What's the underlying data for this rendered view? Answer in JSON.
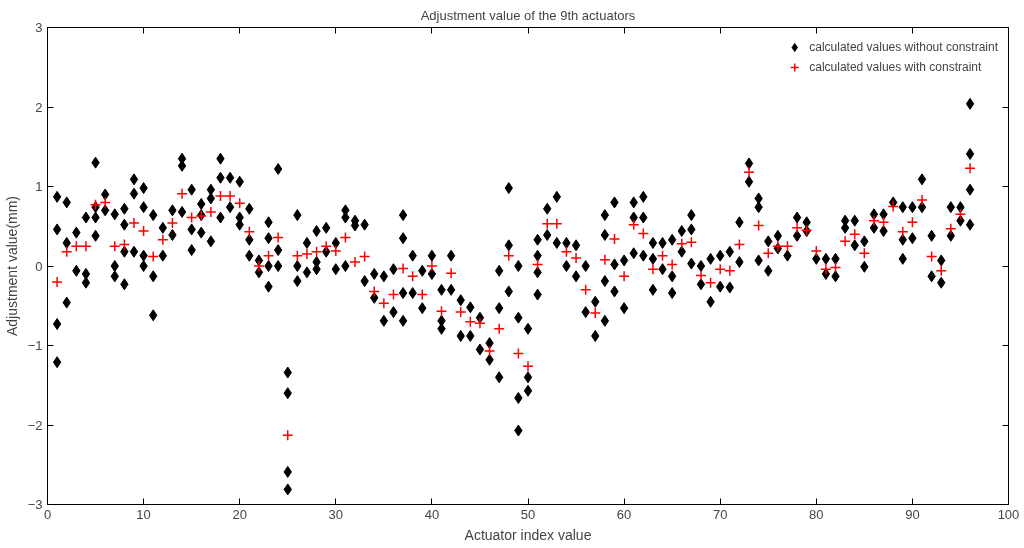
{
  "chart_data": {
    "type": "scatter",
    "title": "Adjustment value of the 9th actuators",
    "xlabel": "Actuator index value",
    "ylabel": "Adjustment value(mm)",
    "xlim": [
      0,
      100
    ],
    "xticks": [
      0,
      10,
      20,
      30,
      40,
      50,
      60,
      70,
      80,
      90,
      100
    ],
    "ylim": [
      -3,
      3
    ],
    "yticks": [
      -3,
      -2,
      -1,
      0,
      1,
      2,
      3
    ],
    "grid": false,
    "legend": "top right",
    "series": [
      {
        "name": "calculated values without constraint",
        "color": "#000000",
        "marker": "diamond",
        "x": [
          1,
          1,
          1,
          1,
          2,
          2,
          2,
          3,
          3,
          4,
          4,
          4,
          5,
          5,
          5,
          5,
          6,
          6,
          7,
          7,
          7,
          8,
          8,
          8,
          8,
          9,
          9,
          9,
          10,
          10,
          10,
          10,
          11,
          11,
          11,
          12,
          12,
          13,
          13,
          14,
          14,
          14,
          15,
          15,
          15,
          16,
          16,
          16,
          17,
          17,
          17,
          18,
          18,
          18,
          19,
          19,
          20,
          20,
          20,
          21,
          21,
          21,
          22,
          22,
          23,
          23,
          23,
          23,
          24,
          24,
          24,
          25,
          25,
          25,
          25,
          26,
          26,
          26,
          27,
          27,
          28,
          28,
          28,
          29,
          29,
          30,
          30,
          31,
          31,
          31,
          32,
          32,
          33,
          33,
          34,
          34,
          35,
          35,
          36,
          36,
          37,
          37,
          37,
          37,
          38,
          38,
          39,
          39,
          40,
          40,
          41,
          41,
          41,
          42,
          42,
          43,
          43,
          44,
          44,
          45,
          45,
          46,
          46,
          47,
          47,
          47,
          48,
          48,
          48,
          49,
          49,
          49,
          49,
          50,
          50,
          50,
          51,
          51,
          51,
          51,
          52,
          52,
          53,
          53,
          54,
          54,
          55,
          55,
          56,
          56,
          57,
          57,
          58,
          58,
          58,
          58,
          59,
          59,
          59,
          60,
          60,
          61,
          61,
          61,
          62,
          62,
          62,
          63,
          63,
          63,
          64,
          64,
          65,
          65,
          65,
          66,
          66,
          67,
          67,
          67,
          68,
          68,
          69,
          69,
          70,
          70,
          71,
          71,
          72,
          72,
          73,
          73,
          74,
          74,
          74,
          75,
          75,
          76,
          76,
          77,
          78,
          78,
          79,
          79,
          80,
          81,
          81,
          82,
          82,
          83,
          83,
          84,
          84,
          85,
          85,
          86,
          86,
          87,
          87,
          88,
          89,
          89,
          89,
          90,
          90,
          91,
          91,
          92,
          92,
          93,
          93,
          94,
          94,
          95,
          95,
          96,
          96,
          96,
          96
        ],
        "values": [
          0.87,
          0.46,
          -0.73,
          -1.21,
          0.8,
          0.29,
          -0.46,
          0.42,
          -0.06,
          0.61,
          -0.1,
          -0.21,
          1.3,
          0.61,
          0.38,
          0.74,
          0.9,
          0.7,
          0.65,
          0.0,
          -0.13,
          0.72,
          0.52,
          0.18,
          -0.23,
          1.09,
          0.91,
          0.18,
          0.98,
          0.74,
          0.13,
          0.0,
          0.64,
          -0.13,
          -0.62,
          0.48,
          0.13,
          0.7,
          0.39,
          1.35,
          1.26,
          0.68,
          0.96,
          0.2,
          0.46,
          0.78,
          0.42,
          0.64,
          0.96,
          0.31,
          0.85,
          1.35,
          1.11,
          0.61,
          1.11,
          0.74,
          1.06,
          0.61,
          0.52,
          0.72,
          0.13,
          0.33,
          0.07,
          -0.08,
          0.55,
          0.35,
          0.0,
          -0.26,
          1.22,
          0.2,
          0.0,
          -1.34,
          -1.6,
          -2.59,
          -2.81,
          0.64,
          0.0,
          -0.19,
          0.29,
          -0.08,
          0.44,
          0.05,
          -0.04,
          0.48,
          0.18,
          0.29,
          -0.04,
          0.7,
          0.61,
          0.0,
          0.57,
          0.51,
          0.52,
          -0.19,
          -0.1,
          -0.4,
          -0.13,
          -0.69,
          -0.04,
          -0.58,
          0.64,
          0.35,
          -0.34,
          -0.69,
          0.13,
          -0.34,
          -0.06,
          -0.53,
          0.13,
          -0.1,
          -0.3,
          -0.69,
          -0.79,
          0.13,
          -0.3,
          -0.43,
          -0.88,
          -0.52,
          -0.88,
          -0.65,
          -1.05,
          -0.97,
          -1.18,
          -0.06,
          -0.53,
          -1.4,
          0.98,
          0.26,
          -0.32,
          0.0,
          -0.65,
          -1.66,
          -2.07,
          -0.79,
          -1.4,
          -1.57,
          0.33,
          0.13,
          -0.08,
          -0.36,
          0.72,
          0.39,
          0.87,
          0.29,
          0.29,
          0.0,
          0.26,
          -0.13,
          0.0,
          -0.58,
          -0.45,
          -0.88,
          0.64,
          0.39,
          -0.19,
          -0.69,
          0.8,
          0.02,
          -0.32,
          0.07,
          -0.53,
          0.8,
          0.61,
          0.16,
          0.87,
          0.61,
          0.13,
          0.29,
          0.09,
          -0.3,
          0.29,
          -0.04,
          0.33,
          -0.13,
          -0.34,
          0.44,
          0.18,
          0.64,
          0.46,
          0.03,
          0.0,
          -0.23,
          0.09,
          -0.45,
          0.13,
          -0.26,
          0.18,
          -0.27,
          0.55,
          0.05,
          1.29,
          1.06,
          0.85,
          0.74,
          0.07,
          0.31,
          -0.06,
          0.38,
          0.22,
          0.13,
          0.61,
          0.38,
          0.55,
          0.44,
          0.09,
          0.09,
          -0.1,
          0.09,
          -0.13,
          0.57,
          0.48,
          0.57,
          0.26,
          -0.01,
          0.31,
          0.65,
          0.48,
          0.65,
          0.44,
          0.8,
          0.74,
          0.33,
          0.09,
          0.74,
          0.35,
          1.09,
          0.74,
          0.38,
          -0.13,
          0.07,
          -0.21,
          0.74,
          0.38,
          0.74,
          0.57,
          2.04,
          1.41,
          0.96,
          0.52
        ]
      },
      {
        "name": "calculated values with constraint",
        "color": "#ff0000",
        "marker": "cross",
        "x": [
          1,
          2,
          3,
          4,
          5,
          6,
          7,
          8,
          9,
          10,
          11,
          12,
          13,
          14,
          15,
          16,
          17,
          18,
          19,
          20,
          21,
          22,
          23,
          24,
          25,
          26,
          27,
          28,
          29,
          30,
          31,
          32,
          33,
          34,
          35,
          36,
          37,
          38,
          39,
          40,
          41,
          42,
          43,
          44,
          45,
          46,
          47,
          48,
          49,
          50,
          51,
          52,
          53,
          54,
          55,
          56,
          57,
          58,
          59,
          60,
          61,
          62,
          63,
          64,
          65,
          66,
          67,
          68,
          69,
          70,
          71,
          72,
          73,
          74,
          75,
          76,
          77,
          78,
          79,
          80,
          81,
          82,
          83,
          84,
          85,
          86,
          87,
          88,
          89,
          90,
          91,
          92,
          93,
          94,
          95,
          96
        ],
        "values": [
          -0.2,
          0.18,
          0.25,
          0.25,
          0.77,
          0.8,
          0.25,
          0.27,
          0.54,
          0.44,
          0.12,
          0.33,
          0.54,
          0.91,
          0.61,
          0.63,
          0.68,
          0.88,
          0.88,
          0.79,
          0.43,
          0.0,
          0.13,
          0.36,
          -2.13,
          0.13,
          0.15,
          0.18,
          0.25,
          0.19,
          0.36,
          0.05,
          0.12,
          -0.32,
          -0.47,
          -0.36,
          -0.03,
          -0.13,
          -0.36,
          0.0,
          -0.57,
          -0.09,
          -0.58,
          -0.7,
          -0.72,
          -1.07,
          -0.79,
          0.13,
          -1.1,
          -1.26,
          0.02,
          0.53,
          0.53,
          0.18,
          0.1,
          -0.3,
          -0.59,
          0.08,
          0.34,
          -0.13,
          0.52,
          0.41,
          -0.04,
          0.13,
          0.02,
          0.28,
          0.3,
          -0.12,
          -0.21,
          -0.04,
          -0.06,
          0.27,
          1.18,
          0.51,
          0.16,
          0.25,
          0.25,
          0.48,
          0.45,
          0.19,
          -0.04,
          -0.02,
          0.31,
          0.4,
          0.16,
          0.57,
          0.55,
          0.75,
          0.43,
          0.55,
          0.83,
          0.12,
          -0.06,
          0.47,
          0.65,
          1.23
        ]
      }
    ]
  }
}
